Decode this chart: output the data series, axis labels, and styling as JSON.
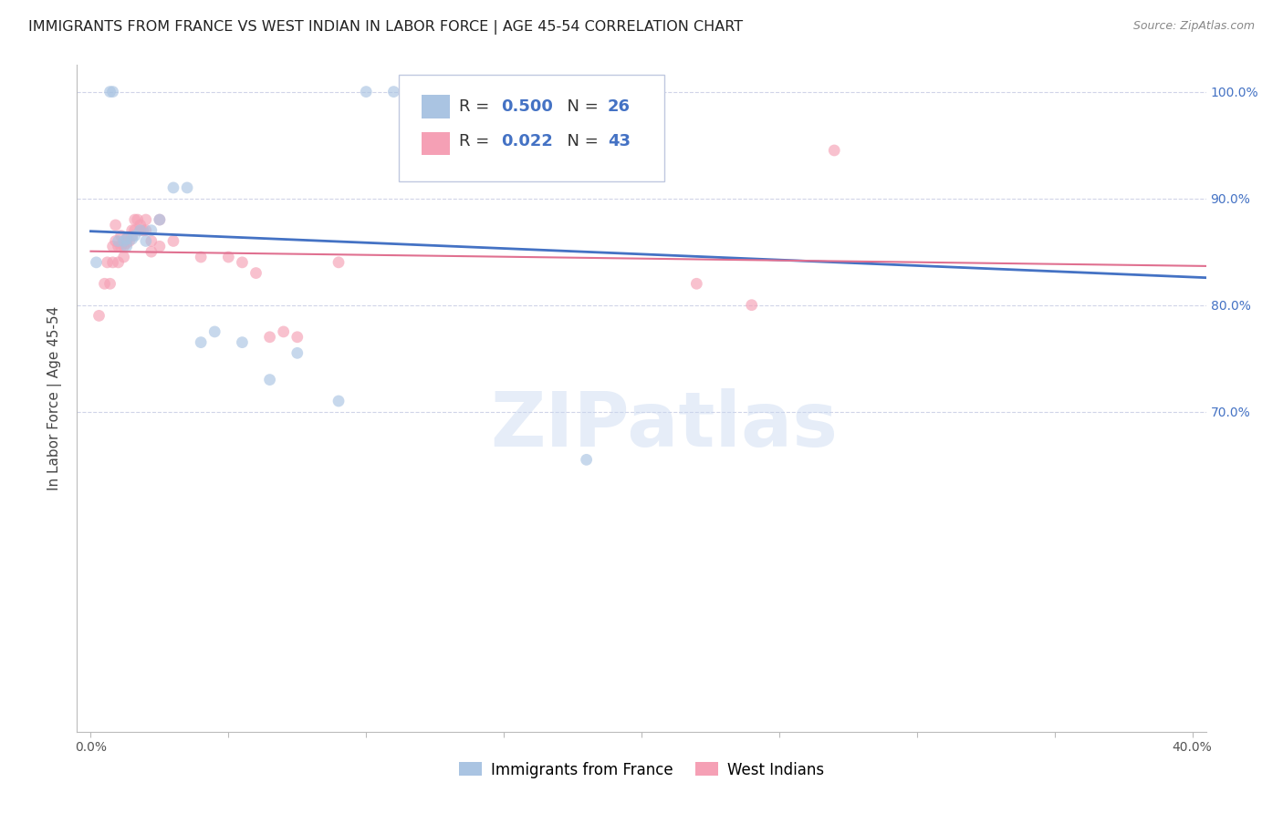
{
  "title": "IMMIGRANTS FROM FRANCE VS WEST INDIAN IN LABOR FORCE | AGE 45-54 CORRELATION CHART",
  "source": "Source: ZipAtlas.com",
  "ylabel": "In Labor Force | Age 45-54",
  "xlim": [
    -0.005,
    0.405
  ],
  "ylim": [
    0.4,
    1.025
  ],
  "france_R": 0.5,
  "france_N": 26,
  "west_indian_R": 0.022,
  "west_indian_N": 43,
  "france_color": "#aac4e2",
  "west_indian_color": "#f5a0b5",
  "france_line_color": "#4472c4",
  "west_indian_line_color": "#e07090",
  "background_color": "#ffffff",
  "grid_color": "#d0d4e8",
  "watermark": "ZIPatlas",
  "france_x": [
    0.002,
    0.007,
    0.008,
    0.01,
    0.012,
    0.013,
    0.013,
    0.015,
    0.016,
    0.018,
    0.02,
    0.022,
    0.025,
    0.03,
    0.035,
    0.04,
    0.045,
    0.055,
    0.065,
    0.075,
    0.09,
    0.1,
    0.11,
    0.14,
    0.16,
    0.18
  ],
  "france_y": [
    0.84,
    1.0,
    1.0,
    0.86,
    0.86,
    0.855,
    0.862,
    0.862,
    0.865,
    0.87,
    0.86,
    0.87,
    0.88,
    0.91,
    0.91,
    0.765,
    0.775,
    0.765,
    0.73,
    0.755,
    0.71,
    1.0,
    1.0,
    1.0,
    1.0,
    0.655
  ],
  "west_indian_x": [
    0.003,
    0.005,
    0.006,
    0.007,
    0.008,
    0.008,
    0.009,
    0.009,
    0.01,
    0.01,
    0.011,
    0.011,
    0.012,
    0.012,
    0.013,
    0.013,
    0.014,
    0.015,
    0.015,
    0.016,
    0.016,
    0.017,
    0.018,
    0.018,
    0.019,
    0.02,
    0.02,
    0.022,
    0.022,
    0.025,
    0.025,
    0.03,
    0.04,
    0.05,
    0.055,
    0.06,
    0.065,
    0.07,
    0.075,
    0.09,
    0.22,
    0.24,
    0.27
  ],
  "west_indian_y": [
    0.79,
    0.82,
    0.84,
    0.82,
    0.84,
    0.855,
    0.86,
    0.875,
    0.84,
    0.855,
    0.855,
    0.865,
    0.845,
    0.855,
    0.858,
    0.862,
    0.86,
    0.87,
    0.865,
    0.87,
    0.88,
    0.88,
    0.87,
    0.875,
    0.87,
    0.88,
    0.87,
    0.86,
    0.85,
    0.88,
    0.855,
    0.86,
    0.845,
    0.845,
    0.84,
    0.83,
    0.77,
    0.775,
    0.77,
    0.84,
    0.82,
    0.8,
    0.945
  ],
  "title_fontsize": 11.5,
  "axis_label_fontsize": 11,
  "tick_fontsize": 10,
  "legend_fontsize": 13,
  "marker_size": 85,
  "marker_alpha": 0.65
}
